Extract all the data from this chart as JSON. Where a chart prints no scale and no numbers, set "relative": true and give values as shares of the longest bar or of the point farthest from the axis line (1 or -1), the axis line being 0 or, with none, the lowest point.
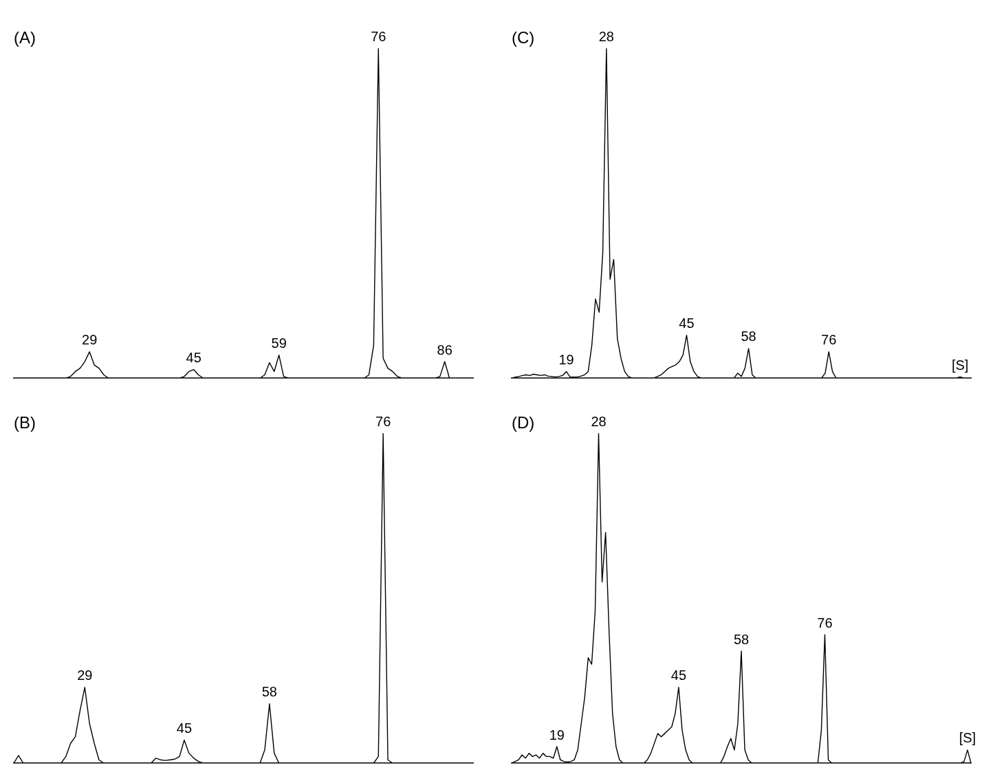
{
  "chart_data": [
    {
      "type": "line",
      "title": "(A)",
      "relative": true,
      "marker": "none",
      "color": "#000000",
      "categories": [
        null,
        null,
        null,
        null,
        null,
        null,
        null,
        null,
        null,
        null,
        null,
        null,
        null,
        null,
        null,
        null,
        null,
        null,
        null,
        null,
        null,
        null,
        null,
        null,
        null,
        null,
        null,
        null,
        null,
        null,
        null,
        null,
        null,
        null,
        null,
        null,
        null,
        null,
        null,
        null,
        null,
        null,
        null,
        null,
        null,
        null,
        null,
        null,
        null,
        null,
        null,
        null,
        null,
        null,
        null,
        null,
        null,
        null,
        null,
        null,
        null,
        null,
        null,
        null,
        null,
        null,
        null,
        null,
        null,
        null,
        null,
        null,
        null,
        null,
        null,
        null,
        null,
        null,
        null,
        null,
        null,
        null,
        null,
        null,
        null,
        null,
        null,
        null,
        null,
        null,
        null,
        null,
        null,
        null,
        null,
        null,
        null,
        null
      ],
      "values": [
        0,
        0,
        0,
        0,
        0,
        0,
        0,
        0,
        0,
        0,
        0,
        0,
        0.005,
        0.02,
        0.03,
        0.05,
        0.08,
        0.04,
        0.03,
        0.01,
        0,
        0,
        0,
        0,
        0,
        0,
        0,
        0,
        0,
        0,
        0,
        0,
        0,
        0,
        0,
        0,
        0.005,
        0.02,
        0.026,
        0.01,
        0,
        0,
        0,
        0,
        0,
        0,
        0,
        0,
        0,
        0,
        0,
        0,
        0,
        0.01,
        0.047,
        0.02,
        0.07,
        0.005,
        0,
        0,
        0,
        0,
        0,
        0,
        0,
        0,
        0,
        0,
        0,
        0,
        0,
        0,
        0,
        0,
        0,
        0.01,
        0.1,
        1,
        0.06,
        0.03,
        0.02,
        0.005,
        0,
        0,
        0,
        0,
        0,
        0,
        0,
        0,
        0.005,
        0.05,
        0,
        0,
        0,
        0,
        0,
        0
      ],
      "annotations": [
        {
          "text": "29",
          "y": 0.08
        },
        {
          "text": "45",
          "y": 0.026
        },
        {
          "text": "59",
          "y": 0.07
        },
        {
          "text": "76",
          "y": 1
        },
        {
          "text": "86",
          "y": 0.05
        }
      ]
    },
    {
      "type": "line",
      "title": "(B)",
      "relative": true,
      "marker": "none",
      "color": "#000000",
      "categories": [
        null,
        null,
        null,
        null,
        null,
        null,
        null,
        null,
        null,
        null,
        null,
        null,
        null,
        null,
        null,
        null,
        null,
        null,
        null,
        null,
        null,
        null,
        null,
        null,
        null,
        null,
        null,
        null,
        null,
        null,
        null,
        null,
        null,
        null,
        null,
        null,
        null,
        null,
        null,
        null,
        null,
        null,
        null,
        null,
        null,
        null,
        null,
        null,
        null,
        null,
        null,
        null,
        null,
        null,
        null,
        null,
        null,
        null,
        null,
        null,
        null,
        null,
        null,
        null,
        null,
        null,
        null,
        null,
        null,
        null,
        null,
        null,
        null,
        null,
        null,
        null,
        null,
        null,
        null,
        null,
        null,
        null,
        null,
        null,
        null,
        null,
        null,
        null,
        null,
        null,
        null,
        null,
        null,
        null,
        null,
        null,
        null,
        null
      ],
      "values": [
        0,
        0.023,
        0,
        0,
        0,
        0,
        0,
        0,
        0,
        0,
        0,
        0.02,
        0.06,
        0.08,
        0.16,
        0.23,
        0.12,
        0.06,
        0.01,
        0,
        0,
        0,
        0,
        0,
        0,
        0,
        0,
        0,
        0,
        0,
        0.015,
        0.01,
        0.008,
        0.01,
        0.012,
        0.02,
        0.07,
        0.03,
        0.015,
        0.005,
        0,
        0,
        0,
        0,
        0,
        0,
        0,
        0,
        0,
        0,
        0,
        0,
        0,
        0.04,
        0.18,
        0.03,
        0,
        0,
        0,
        0,
        0,
        0,
        0,
        0,
        0,
        0,
        0,
        0,
        0,
        0,
        0,
        0,
        0,
        0,
        0,
        0,
        0,
        0.02,
        1,
        0.01,
        0,
        0,
        0,
        0,
        0,
        0,
        0,
        0,
        0,
        0,
        0,
        0,
        0,
        0,
        0,
        0,
        0,
        0
      ],
      "annotations": [
        {
          "text": "29",
          "y": 0.23
        },
        {
          "text": "45",
          "y": 0.07
        },
        {
          "text": "58",
          "y": 0.18
        },
        {
          "text": "76",
          "y": 1
        }
      ]
    },
    {
      "type": "line",
      "title": "(C)",
      "relative": true,
      "marker": "none",
      "color": "#000000",
      "categories": [
        null,
        null,
        null,
        null,
        null,
        null,
        null,
        null,
        null,
        null,
        null,
        null,
        null,
        null,
        null,
        null,
        null,
        null,
        null,
        null,
        null,
        null,
        null,
        null,
        null,
        null,
        null,
        null,
        null,
        null,
        null,
        null,
        null,
        null,
        null,
        null,
        null,
        null,
        null,
        null,
        null,
        null,
        null,
        null,
        null,
        null,
        null,
        null,
        null,
        null,
        null,
        null,
        null,
        null,
        null,
        null,
        null,
        null,
        null,
        null,
        null,
        null,
        null,
        null,
        null,
        null,
        null,
        null,
        null,
        null,
        null,
        null,
        null,
        null,
        null,
        null,
        null,
        null,
        null,
        null,
        null,
        null,
        null,
        null,
        null,
        null,
        null,
        null,
        null,
        null,
        null,
        null,
        null,
        null,
        null,
        null,
        null,
        null,
        null,
        null,
        null,
        null,
        null,
        null,
        null,
        null,
        null,
        null,
        null,
        null,
        null,
        null,
        null,
        null,
        null,
        null,
        null,
        null,
        null,
        null,
        null,
        null,
        null,
        null,
        null,
        null,
        null
      ],
      "values": [
        0,
        0.003,
        0.005,
        0.008,
        0.01,
        0.008,
        0.012,
        0.01,
        0.008,
        0.01,
        0.006,
        0.005,
        0.004,
        0.005,
        0.008,
        0.02,
        0.004,
        0.003,
        0.004,
        0.006,
        0.01,
        0.02,
        0.1,
        0.24,
        0.2,
        0.38,
        1,
        0.3,
        0.36,
        0.12,
        0.06,
        0.02,
        0.005,
        0,
        0,
        0,
        0,
        0,
        0,
        0,
        0.005,
        0.01,
        0.02,
        0.03,
        0.035,
        0.04,
        0.05,
        0.07,
        0.13,
        0.05,
        0.02,
        0.005,
        0,
        0,
        0,
        0,
        0,
        0,
        0,
        0,
        0,
        0,
        0.015,
        0.005,
        0.03,
        0.09,
        0.01,
        0,
        0,
        0,
        0,
        0,
        0,
        0,
        0,
        0,
        0,
        0,
        0,
        0,
        0,
        0,
        0,
        0,
        0,
        0,
        0.015,
        0.08,
        0.02,
        0,
        0,
        0,
        0,
        0,
        0,
        0,
        0,
        0,
        0,
        0,
        0,
        0,
        0,
        0,
        0,
        0,
        0,
        0,
        0,
        0,
        0,
        0,
        0,
        0,
        0,
        0,
        0,
        0,
        0,
        0,
        0,
        0,
        0,
        0.004,
        0,
        0,
        0
      ],
      "annotations": [
        {
          "text": "19",
          "y": 0.02
        },
        {
          "text": "28",
          "y": 1
        },
        {
          "text": "45",
          "y": 0.13
        },
        {
          "text": "58",
          "y": 0.09
        },
        {
          "text": "76",
          "y": 0.08
        },
        {
          "text": "[S]",
          "y": 0.004
        }
      ]
    },
    {
      "type": "line",
      "title": "(D)",
      "relative": true,
      "marker": "none",
      "color": "#000000",
      "categories": [
        null,
        null,
        null,
        null,
        null,
        null,
        null,
        null,
        null,
        null,
        null,
        null,
        null,
        null,
        null,
        null,
        null,
        null,
        null,
        null,
        null,
        null,
        null,
        null,
        null,
        null,
        null,
        null,
        null,
        null,
        null,
        null,
        null,
        null,
        null,
        null,
        null,
        null,
        null,
        null,
        null,
        null,
        null,
        null,
        null,
        null,
        null,
        null,
        null,
        null,
        null,
        null,
        null,
        null,
        null,
        null,
        null,
        null,
        null,
        null,
        null,
        null,
        null,
        null,
        null,
        null,
        null,
        null,
        null,
        null,
        null,
        null,
        null,
        null,
        null,
        null,
        null,
        null,
        null,
        null,
        null,
        null,
        null,
        null,
        null,
        null,
        null,
        null,
        null,
        null,
        null,
        null,
        null,
        null,
        null,
        null,
        null,
        null,
        null,
        null,
        null,
        null,
        null,
        null,
        null,
        null,
        null,
        null,
        null,
        null,
        null,
        null,
        null,
        null,
        null,
        null,
        null,
        null,
        null,
        null,
        null,
        null,
        null,
        null,
        null,
        null,
        null,
        null,
        null,
        null,
        null,
        null,
        null
      ],
      "values": [
        0,
        0.005,
        0.01,
        0.025,
        0.015,
        0.03,
        0.02,
        0.025,
        0.015,
        0.03,
        0.02,
        0.02,
        0.015,
        0.05,
        0.01,
        0.005,
        0.003,
        0.005,
        0.01,
        0.04,
        0.12,
        0.2,
        0.32,
        0.3,
        0.46,
        1,
        0.55,
        0.7,
        0.4,
        0.15,
        0.05,
        0.01,
        0,
        0,
        0,
        0,
        0,
        0,
        0,
        0.01,
        0.03,
        0.06,
        0.09,
        0.08,
        0.09,
        0.1,
        0.11,
        0.15,
        0.23,
        0.1,
        0.04,
        0.01,
        0,
        0,
        0,
        0,
        0,
        0,
        0,
        0,
        0,
        0.02,
        0.05,
        0.075,
        0.04,
        0.12,
        0.34,
        0.04,
        0.01,
        0,
        0,
        0,
        0,
        0,
        0,
        0,
        0,
        0,
        0,
        0,
        0,
        0,
        0,
        0,
        0,
        0,
        0,
        0,
        0,
        0.1,
        0.39,
        0.01,
        0,
        0,
        0,
        0,
        0,
        0,
        0,
        0,
        0,
        0,
        0,
        0,
        0,
        0,
        0,
        0,
        0,
        0,
        0,
        0,
        0,
        0,
        0,
        0,
        0,
        0,
        0,
        0,
        0,
        0,
        0,
        0,
        0,
        0,
        0,
        0,
        0,
        0,
        0.005,
        0.04,
        0
      ],
      "annotations": [
        {
          "text": "19",
          "y": 0.05
        },
        {
          "text": "28",
          "y": 1
        },
        {
          "text": "45",
          "y": 0.23
        },
        {
          "text": "58",
          "y": 0.34
        },
        {
          "text": "76",
          "y": 0.39
        },
        {
          "text": "[S]",
          "y": 0.04
        }
      ]
    }
  ]
}
